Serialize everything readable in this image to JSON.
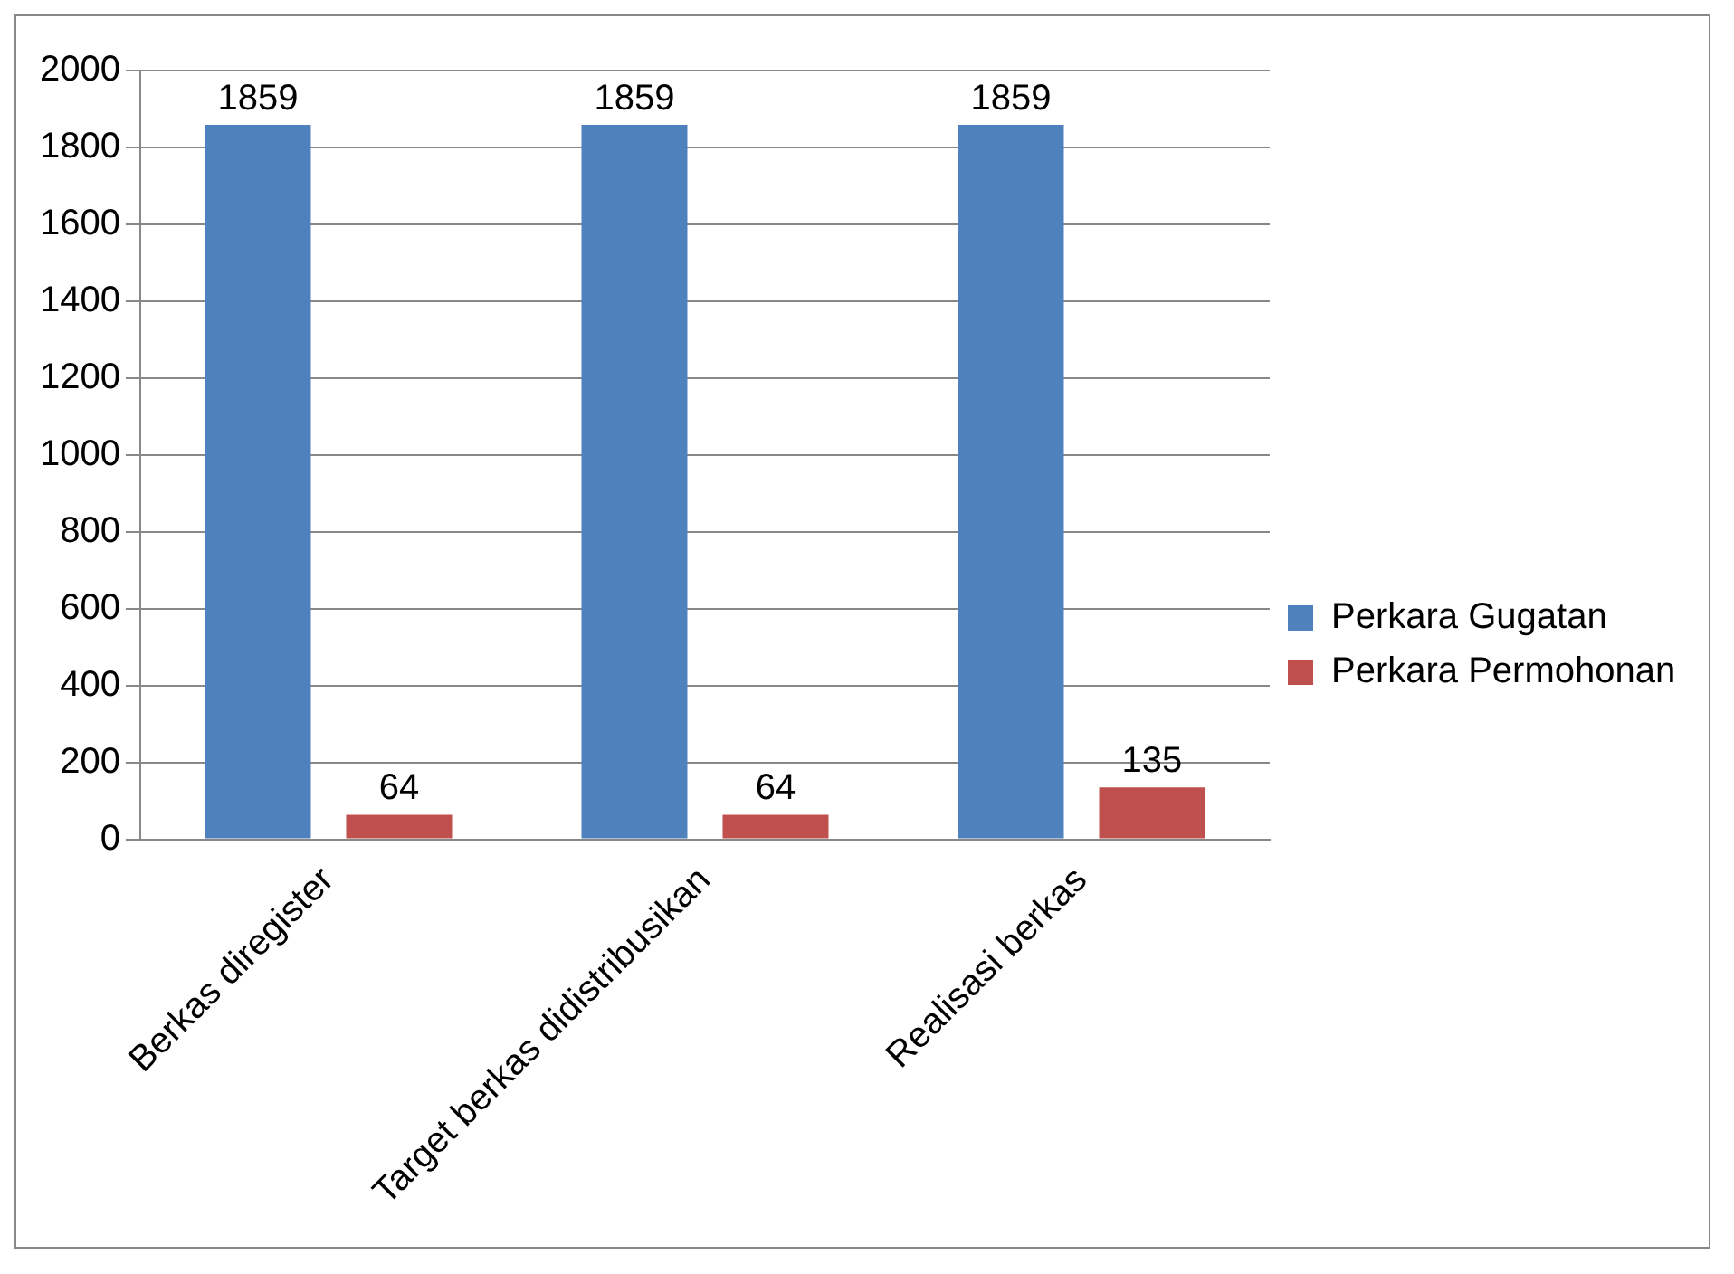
{
  "chart_data": {
    "type": "bar",
    "categories": [
      "Berkas diregister",
      "Target berkas didistribusikan",
      "Realisasi berkas"
    ],
    "series": [
      {
        "name": "Perkara Gugatan",
        "color": "#4f81bd",
        "values": [
          1859,
          1859,
          1859
        ]
      },
      {
        "name": "Perkara Permohonan",
        "color": "#c0504d",
        "values": [
          64,
          64,
          135
        ]
      }
    ],
    "ylim": [
      0,
      2000
    ],
    "yticks": [
      0,
      200,
      400,
      600,
      800,
      1000,
      1200,
      1400,
      1600,
      1800,
      2000
    ],
    "grid": "y",
    "legend": "right",
    "data_labels": true
  }
}
